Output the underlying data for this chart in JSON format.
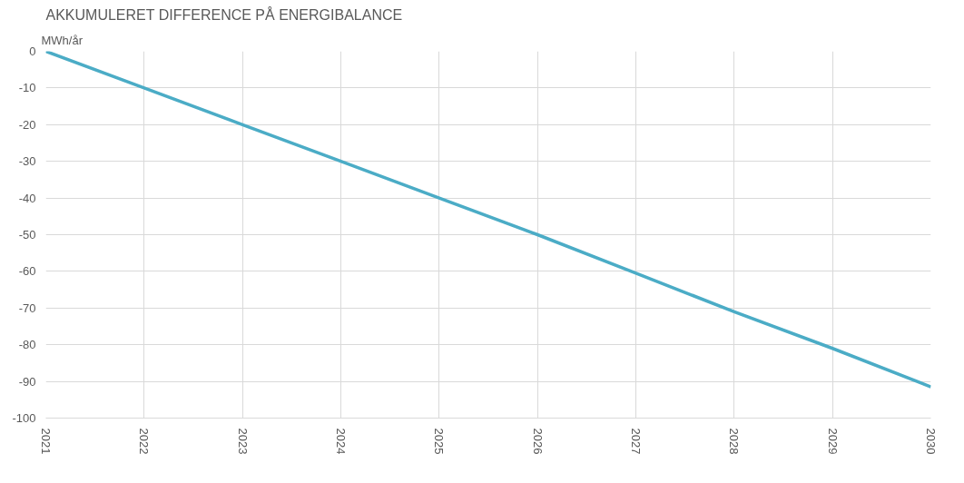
{
  "chart_data": {
    "type": "line",
    "title": "AKKUMULERET DIFFERENCE PÅ ENERGIBALANCE",
    "ylabel": "MWh/år",
    "x": [
      2021,
      2022,
      2023,
      2024,
      2025,
      2026,
      2027,
      2028,
      2029,
      2030
    ],
    "series": [
      {
        "color": "#4bacc6",
        "values": [
          0,
          -10,
          -20,
          -30,
          -40,
          -50,
          -60.5,
          -71,
          -81,
          -91.5
        ]
      }
    ],
    "xlim": [
      2021,
      2030
    ],
    "xticks": [
      2021,
      2022,
      2023,
      2024,
      2025,
      2026,
      2027,
      2028,
      2029,
      2030
    ],
    "ylim": [
      -100,
      0
    ],
    "yticks": [
      -100,
      -90,
      -80,
      -70,
      -60,
      -50,
      -40,
      -30,
      -20,
      -10,
      0
    ],
    "grid": true,
    "marker": "none",
    "line_style": "solid"
  }
}
